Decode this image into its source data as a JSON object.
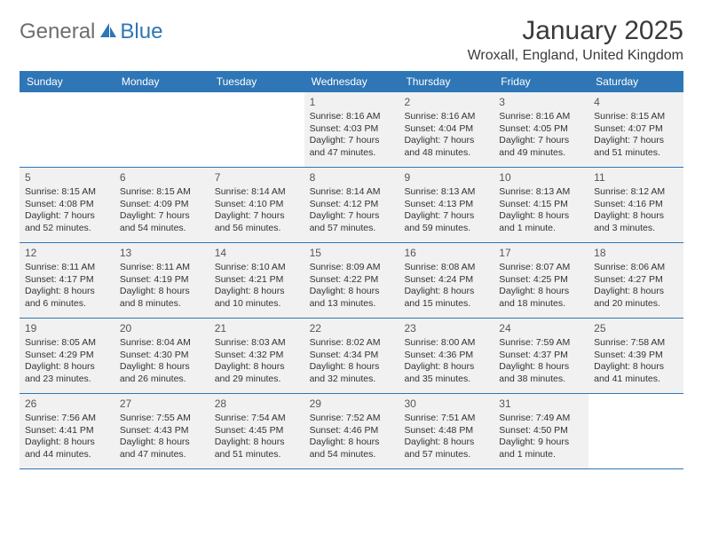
{
  "brand": {
    "part1": "General",
    "part2": "Blue"
  },
  "header": {
    "title": "January 2025",
    "location": "Wroxall, England, United Kingdom"
  },
  "colors": {
    "header_bar": "#2f76b6",
    "cell_filled_bg": "#f1f1f1",
    "border": "#2f76b6",
    "logo_gray": "#6e6e6e",
    "logo_blue": "#2f76b6",
    "text": "#333333"
  },
  "weekdays": [
    "Sunday",
    "Monday",
    "Tuesday",
    "Wednesday",
    "Thursday",
    "Friday",
    "Saturday"
  ],
  "weeks": [
    [
      {
        "day": "",
        "sunrise": "",
        "sunset": "",
        "daylight1": "",
        "daylight2": ""
      },
      {
        "day": "",
        "sunrise": "",
        "sunset": "",
        "daylight1": "",
        "daylight2": ""
      },
      {
        "day": "",
        "sunrise": "",
        "sunset": "",
        "daylight1": "",
        "daylight2": ""
      },
      {
        "day": "1",
        "sunrise": "Sunrise: 8:16 AM",
        "sunset": "Sunset: 4:03 PM",
        "daylight1": "Daylight: 7 hours",
        "daylight2": "and 47 minutes."
      },
      {
        "day": "2",
        "sunrise": "Sunrise: 8:16 AM",
        "sunset": "Sunset: 4:04 PM",
        "daylight1": "Daylight: 7 hours",
        "daylight2": "and 48 minutes."
      },
      {
        "day": "3",
        "sunrise": "Sunrise: 8:16 AM",
        "sunset": "Sunset: 4:05 PM",
        "daylight1": "Daylight: 7 hours",
        "daylight2": "and 49 minutes."
      },
      {
        "day": "4",
        "sunrise": "Sunrise: 8:15 AM",
        "sunset": "Sunset: 4:07 PM",
        "daylight1": "Daylight: 7 hours",
        "daylight2": "and 51 minutes."
      }
    ],
    [
      {
        "day": "5",
        "sunrise": "Sunrise: 8:15 AM",
        "sunset": "Sunset: 4:08 PM",
        "daylight1": "Daylight: 7 hours",
        "daylight2": "and 52 minutes."
      },
      {
        "day": "6",
        "sunrise": "Sunrise: 8:15 AM",
        "sunset": "Sunset: 4:09 PM",
        "daylight1": "Daylight: 7 hours",
        "daylight2": "and 54 minutes."
      },
      {
        "day": "7",
        "sunrise": "Sunrise: 8:14 AM",
        "sunset": "Sunset: 4:10 PM",
        "daylight1": "Daylight: 7 hours",
        "daylight2": "and 56 minutes."
      },
      {
        "day": "8",
        "sunrise": "Sunrise: 8:14 AM",
        "sunset": "Sunset: 4:12 PM",
        "daylight1": "Daylight: 7 hours",
        "daylight2": "and 57 minutes."
      },
      {
        "day": "9",
        "sunrise": "Sunrise: 8:13 AM",
        "sunset": "Sunset: 4:13 PM",
        "daylight1": "Daylight: 7 hours",
        "daylight2": "and 59 minutes."
      },
      {
        "day": "10",
        "sunrise": "Sunrise: 8:13 AM",
        "sunset": "Sunset: 4:15 PM",
        "daylight1": "Daylight: 8 hours",
        "daylight2": "and 1 minute."
      },
      {
        "day": "11",
        "sunrise": "Sunrise: 8:12 AM",
        "sunset": "Sunset: 4:16 PM",
        "daylight1": "Daylight: 8 hours",
        "daylight2": "and 3 minutes."
      }
    ],
    [
      {
        "day": "12",
        "sunrise": "Sunrise: 8:11 AM",
        "sunset": "Sunset: 4:17 PM",
        "daylight1": "Daylight: 8 hours",
        "daylight2": "and 6 minutes."
      },
      {
        "day": "13",
        "sunrise": "Sunrise: 8:11 AM",
        "sunset": "Sunset: 4:19 PM",
        "daylight1": "Daylight: 8 hours",
        "daylight2": "and 8 minutes."
      },
      {
        "day": "14",
        "sunrise": "Sunrise: 8:10 AM",
        "sunset": "Sunset: 4:21 PM",
        "daylight1": "Daylight: 8 hours",
        "daylight2": "and 10 minutes."
      },
      {
        "day": "15",
        "sunrise": "Sunrise: 8:09 AM",
        "sunset": "Sunset: 4:22 PM",
        "daylight1": "Daylight: 8 hours",
        "daylight2": "and 13 minutes."
      },
      {
        "day": "16",
        "sunrise": "Sunrise: 8:08 AM",
        "sunset": "Sunset: 4:24 PM",
        "daylight1": "Daylight: 8 hours",
        "daylight2": "and 15 minutes."
      },
      {
        "day": "17",
        "sunrise": "Sunrise: 8:07 AM",
        "sunset": "Sunset: 4:25 PM",
        "daylight1": "Daylight: 8 hours",
        "daylight2": "and 18 minutes."
      },
      {
        "day": "18",
        "sunrise": "Sunrise: 8:06 AM",
        "sunset": "Sunset: 4:27 PM",
        "daylight1": "Daylight: 8 hours",
        "daylight2": "and 20 minutes."
      }
    ],
    [
      {
        "day": "19",
        "sunrise": "Sunrise: 8:05 AM",
        "sunset": "Sunset: 4:29 PM",
        "daylight1": "Daylight: 8 hours",
        "daylight2": "and 23 minutes."
      },
      {
        "day": "20",
        "sunrise": "Sunrise: 8:04 AM",
        "sunset": "Sunset: 4:30 PM",
        "daylight1": "Daylight: 8 hours",
        "daylight2": "and 26 minutes."
      },
      {
        "day": "21",
        "sunrise": "Sunrise: 8:03 AM",
        "sunset": "Sunset: 4:32 PM",
        "daylight1": "Daylight: 8 hours",
        "daylight2": "and 29 minutes."
      },
      {
        "day": "22",
        "sunrise": "Sunrise: 8:02 AM",
        "sunset": "Sunset: 4:34 PM",
        "daylight1": "Daylight: 8 hours",
        "daylight2": "and 32 minutes."
      },
      {
        "day": "23",
        "sunrise": "Sunrise: 8:00 AM",
        "sunset": "Sunset: 4:36 PM",
        "daylight1": "Daylight: 8 hours",
        "daylight2": "and 35 minutes."
      },
      {
        "day": "24",
        "sunrise": "Sunrise: 7:59 AM",
        "sunset": "Sunset: 4:37 PM",
        "daylight1": "Daylight: 8 hours",
        "daylight2": "and 38 minutes."
      },
      {
        "day": "25",
        "sunrise": "Sunrise: 7:58 AM",
        "sunset": "Sunset: 4:39 PM",
        "daylight1": "Daylight: 8 hours",
        "daylight2": "and 41 minutes."
      }
    ],
    [
      {
        "day": "26",
        "sunrise": "Sunrise: 7:56 AM",
        "sunset": "Sunset: 4:41 PM",
        "daylight1": "Daylight: 8 hours",
        "daylight2": "and 44 minutes."
      },
      {
        "day": "27",
        "sunrise": "Sunrise: 7:55 AM",
        "sunset": "Sunset: 4:43 PM",
        "daylight1": "Daylight: 8 hours",
        "daylight2": "and 47 minutes."
      },
      {
        "day": "28",
        "sunrise": "Sunrise: 7:54 AM",
        "sunset": "Sunset: 4:45 PM",
        "daylight1": "Daylight: 8 hours",
        "daylight2": "and 51 minutes."
      },
      {
        "day": "29",
        "sunrise": "Sunrise: 7:52 AM",
        "sunset": "Sunset: 4:46 PM",
        "daylight1": "Daylight: 8 hours",
        "daylight2": "and 54 minutes."
      },
      {
        "day": "30",
        "sunrise": "Sunrise: 7:51 AM",
        "sunset": "Sunset: 4:48 PM",
        "daylight1": "Daylight: 8 hours",
        "daylight2": "and 57 minutes."
      },
      {
        "day": "31",
        "sunrise": "Sunrise: 7:49 AM",
        "sunset": "Sunset: 4:50 PM",
        "daylight1": "Daylight: 9 hours",
        "daylight2": "and 1 minute."
      },
      {
        "day": "",
        "sunrise": "",
        "sunset": "",
        "daylight1": "",
        "daylight2": ""
      }
    ]
  ]
}
